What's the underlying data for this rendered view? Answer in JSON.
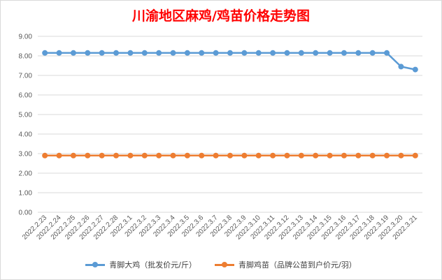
{
  "chart_data": {
    "type": "line",
    "title": "川渝地区麻鸡/鸡苗价格走势图",
    "categories": [
      "2022.2.23",
      "2022.2.24",
      "2022.2.25",
      "2022.2.26",
      "2022.2.27",
      "2022.2.28",
      "2022.3.1",
      "2022.3.2",
      "2022.3.3",
      "2022.3.4",
      "2022.3.5",
      "2022.3.6",
      "2022.3.7",
      "2022.3.8",
      "2022.3.9",
      "2022.3.10",
      "2022.3.11",
      "2022.3.12",
      "2022.3.13",
      "2022.3.14",
      "2022.3.15",
      "2022.3.16",
      "2022.3.17",
      "2022.3.18",
      "2022.3.19",
      "2022.3.20",
      "2022.3.21"
    ],
    "yticks": [
      "0.00",
      "1.00",
      "2.00",
      "3.00",
      "4.00",
      "5.00",
      "6.00",
      "7.00",
      "8.00",
      "9.00"
    ],
    "ylim": [
      0,
      9
    ],
    "grid": true,
    "legend_position": "bottom",
    "series": [
      {
        "name": "青脚大鸡（批发价元/斤）",
        "color": "#5b9bd5",
        "values": [
          8.15,
          8.15,
          8.15,
          8.15,
          8.15,
          8.15,
          8.15,
          8.15,
          8.15,
          8.15,
          8.15,
          8.15,
          8.15,
          8.15,
          8.15,
          8.15,
          8.15,
          8.15,
          8.15,
          8.15,
          8.15,
          8.15,
          8.15,
          8.15,
          8.15,
          7.45,
          7.3
        ]
      },
      {
        "name": "青脚鸡苗（品牌公苗到户价元/羽）",
        "color": "#ed7d31",
        "values": [
          2.9,
          2.9,
          2.9,
          2.9,
          2.9,
          2.9,
          2.9,
          2.9,
          2.9,
          2.9,
          2.9,
          2.9,
          2.9,
          2.9,
          2.9,
          2.9,
          2.9,
          2.9,
          2.9,
          2.9,
          2.9,
          2.9,
          2.9,
          2.9,
          2.9,
          2.9,
          2.9
        ]
      }
    ]
  }
}
